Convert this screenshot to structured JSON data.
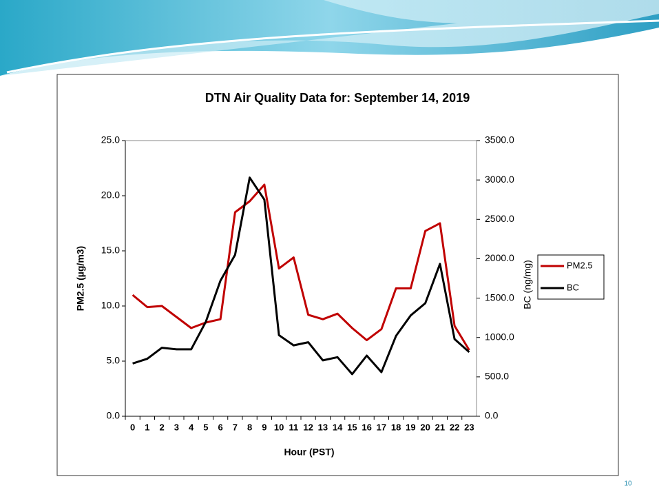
{
  "chart_data": {
    "type": "line",
    "title": "DTN Air Quality  Data for: September 14, 2019",
    "x_label": "Hour (PST)",
    "y_label": "PM2.5 (µg/m3)",
    "y2_label": "BC (ng/mg)",
    "categories": [
      "0",
      "1",
      "2",
      "3",
      "4",
      "5",
      "6",
      "7",
      "8",
      "9",
      "10",
      "11",
      "12",
      "13",
      "14",
      "15",
      "16",
      "17",
      "18",
      "19",
      "20",
      "21",
      "22",
      "23"
    ],
    "series": [
      {
        "name": "PM2.5",
        "color": "#c00000",
        "axis": "y",
        "values": [
          11.0,
          9.9,
          10.0,
          9.0,
          8.0,
          8.5,
          8.8,
          18.5,
          19.5,
          21.0,
          13.4,
          14.4,
          9.2,
          8.8,
          9.3,
          8.0,
          6.9,
          7.9,
          11.6,
          11.6,
          16.8,
          17.5,
          8.2,
          6.0
        ]
      },
      {
        "name": "BC",
        "color": "#000000",
        "axis": "y2",
        "values": [
          670,
          730,
          870,
          850,
          850,
          1200,
          1720,
          2050,
          3030,
          2750,
          1030,
          900,
          940,
          710,
          750,
          535,
          770,
          560,
          1020,
          1280,
          1435,
          1935,
          980,
          815
        ]
      }
    ],
    "ylim": [
      0,
      25
    ],
    "yticks": [
      {
        "value": 0,
        "label": "0.0"
      },
      {
        "value": 5,
        "label": "5.0"
      },
      {
        "value": 10,
        "label": "10.0"
      },
      {
        "value": 15,
        "label": "15.0"
      },
      {
        "value": 20,
        "label": "20.0"
      },
      {
        "value": 25,
        "label": "25.0"
      }
    ],
    "y2lim": [
      0,
      3500
    ],
    "y2ticks": [
      {
        "value": 0,
        "label": "0.0"
      },
      {
        "value": 500,
        "label": "500.0"
      },
      {
        "value": 1000,
        "label": "1000.0"
      },
      {
        "value": 1500,
        "label": "1500.0"
      },
      {
        "value": 2000,
        "label": "2000.0"
      },
      {
        "value": 2500,
        "label": "2500.0"
      },
      {
        "value": 3000,
        "label": "3000.0"
      },
      {
        "value": 3500,
        "label": "3500.0"
      }
    ],
    "grid": false,
    "legend": "right"
  },
  "slide_number": "10"
}
